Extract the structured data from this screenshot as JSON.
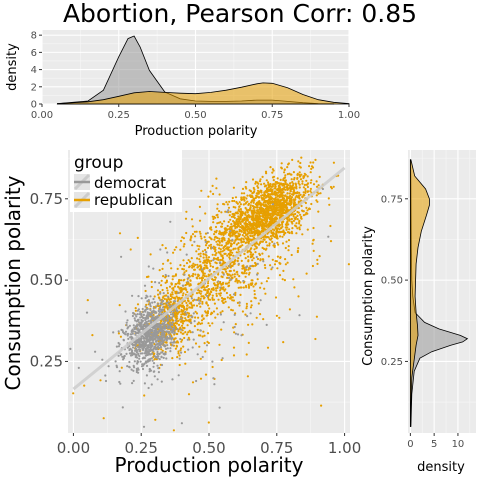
{
  "chart_data": [
    {
      "panel": "top-density",
      "type": "area",
      "title": "Abortion, Pearson Corr: 0.85",
      "xlabel": "Production polarity",
      "ylabel": "density",
      "xlim": [
        0,
        1
      ],
      "ylim": [
        0,
        8.6
      ],
      "x_ticks": [
        "0.00",
        "0.25",
        "0.50",
        "0.75",
        "1.00"
      ],
      "y_ticks": [
        "0",
        "2",
        "4",
        "6",
        "8"
      ],
      "grid": true,
      "series": [
        {
          "name": "democrat",
          "color": "#999999",
          "x": [
            0.05,
            0.15,
            0.2,
            0.25,
            0.28,
            0.3,
            0.32,
            0.35,
            0.4,
            0.45,
            0.5,
            0.55,
            0.6,
            0.65,
            0.7,
            0.75,
            0.8,
            0.85,
            0.9,
            0.95
          ],
          "y": [
            0.05,
            0.35,
            1.6,
            5.5,
            7.6,
            7.9,
            6.6,
            3.9,
            1.4,
            0.6,
            0.35,
            0.3,
            0.3,
            0.35,
            0.45,
            0.45,
            0.3,
            0.15,
            0.05,
            0.02
          ]
        },
        {
          "name": "republican",
          "color": "#E69F00",
          "x": [
            0.05,
            0.15,
            0.2,
            0.25,
            0.3,
            0.35,
            0.4,
            0.45,
            0.5,
            0.55,
            0.6,
            0.65,
            0.7,
            0.72,
            0.75,
            0.8,
            0.85,
            0.9,
            0.95,
            1.0
          ],
          "y": [
            0.05,
            0.25,
            0.5,
            0.9,
            1.3,
            1.45,
            1.35,
            1.25,
            1.2,
            1.35,
            1.6,
            1.95,
            2.35,
            2.45,
            2.4,
            1.9,
            1.1,
            0.5,
            0.2,
            0.05
          ]
        }
      ]
    },
    {
      "panel": "main-scatter",
      "type": "scatter",
      "xlabel": "Production polarity",
      "ylabel": "Consumption polarity",
      "xlim": [
        -0.02,
        1.02
      ],
      "ylim": [
        0.03,
        0.9
      ],
      "x_ticks": [
        "0.00",
        "0.25",
        "0.50",
        "0.75",
        "1.00"
      ],
      "y_ticks": [
        "0.25",
        "0.50",
        "0.75"
      ],
      "grid": true,
      "legend": {
        "title": "group",
        "position": "top-left",
        "entries": [
          "democrat",
          "republican"
        ]
      },
      "fit_line": {
        "x": [
          0.0,
          1.0
        ],
        "y": [
          0.165,
          0.845
        ],
        "color": "#cccccc"
      },
      "series": [
        {
          "name": "democrat",
          "color": "#999999",
          "clusters": [
            {
              "cx": 0.28,
              "cy": 0.33,
              "sx": 0.045,
              "sy": 0.045,
              "n": 900
            },
            {
              "cx": 0.45,
              "cy": 0.42,
              "sx": 0.15,
              "sy": 0.12,
              "n": 120
            }
          ],
          "x": [
            0.02,
            0.08,
            0.12,
            0.4,
            0.44,
            0.52,
            0.55,
            0.61,
            0.05,
            0.68,
            0.92
          ],
          "y": [
            0.23,
            0.28,
            0.19,
            0.06,
            0.34,
            0.18,
            0.26,
            0.55,
            0.4,
            0.55,
            0.78
          ]
        },
        {
          "name": "republican",
          "color": "#E69F00",
          "clusters": [
            {
              "cx": 0.72,
              "cy": 0.71,
              "sx": 0.08,
              "sy": 0.05,
              "n": 1600
            },
            {
              "cx": 0.53,
              "cy": 0.53,
              "sx": 0.1,
              "sy": 0.08,
              "n": 700
            },
            {
              "cx": 0.36,
              "cy": 0.38,
              "sx": 0.06,
              "sy": 0.05,
              "n": 500
            },
            {
              "cx": 0.55,
              "cy": 0.5,
              "sx": 0.22,
              "sy": 0.15,
              "n": 220
            }
          ],
          "x": [
            0.88,
            0.97,
            0.95,
            0.9,
            0.86,
            0.78,
            0.83,
            0.7
          ],
          "y": [
            0.85,
            0.82,
            0.62,
            0.55,
            0.52,
            0.5,
            0.45,
            0.38
          ]
        }
      ]
    },
    {
      "panel": "right-density",
      "type": "area",
      "xlabel": "density",
      "ylabel": "Consumption polarity",
      "xlim": [
        -0.5,
        13.8
      ],
      "ylim": [
        0.03,
        0.9
      ],
      "x_ticks": [
        "0",
        "5",
        "10"
      ],
      "y_ticks": [
        "0.25",
        "0.50",
        "0.75"
      ],
      "grid": true,
      "series": [
        {
          "name": "democrat",
          "color": "#999999",
          "y": [
            0.05,
            0.15,
            0.22,
            0.26,
            0.28,
            0.3,
            0.31,
            0.32,
            0.33,
            0.35,
            0.37,
            0.4,
            0.45,
            0.5,
            0.6,
            0.7,
            0.8,
            0.87
          ],
          "x": [
            0.1,
            0.3,
            0.8,
            2.0,
            4.5,
            8.5,
            11.0,
            12.0,
            10.5,
            6.0,
            3.0,
            1.0,
            0.5,
            0.3,
            0.2,
            0.15,
            0.1,
            0.05
          ]
        },
        {
          "name": "republican",
          "color": "#E69F00",
          "y": [
            0.05,
            0.2,
            0.3,
            0.33,
            0.36,
            0.4,
            0.45,
            0.5,
            0.55,
            0.6,
            0.65,
            0.7,
            0.73,
            0.75,
            0.78,
            0.82,
            0.87
          ],
          "x": [
            0.05,
            0.3,
            1.2,
            1.6,
            1.5,
            1.2,
            1.0,
            1.1,
            1.2,
            1.6,
            2.3,
            3.4,
            4.0,
            4.0,
            3.2,
            0.9,
            0.1
          ]
        }
      ]
    }
  ]
}
